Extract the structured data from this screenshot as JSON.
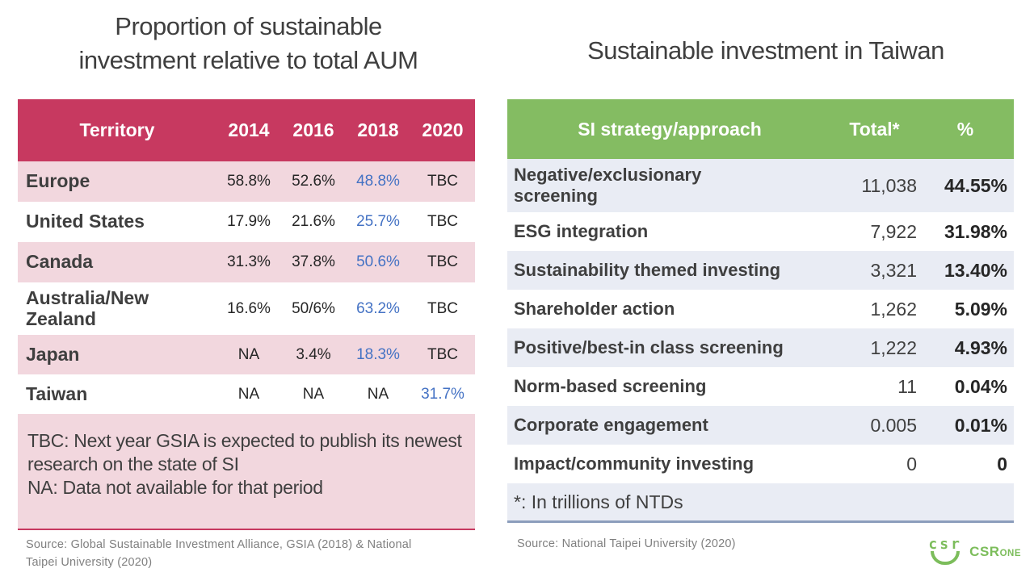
{
  "chart_data": [
    {
      "type": "table",
      "title": "Proportion of sustainable investment relative to total AUM",
      "title_lines": [
        "Proportion of sustainable",
        "investment relative to total AUM"
      ],
      "columns": [
        "Territory",
        "2014",
        "2016",
        "2018",
        "2020"
      ],
      "rows": [
        [
          "Europe",
          "58.8%",
          "52.6%",
          "48.8%",
          "TBC"
        ],
        [
          "United States",
          "17.9%",
          "21.6%",
          "25.7%",
          "TBC"
        ],
        [
          "Canada",
          "31.3%",
          "37.8%",
          "50.6%",
          "TBC"
        ],
        [
          "Australia/New Zealand",
          "16.6%",
          "50/6%",
          "63.2%",
          "TBC"
        ],
        [
          "Japan",
          "NA",
          "3.4%",
          "18.3%",
          "TBC"
        ],
        [
          "Taiwan",
          "NA",
          "NA",
          "NA",
          "31.7%"
        ]
      ],
      "notes": [
        "TBC: Next year GSIA is expected to publish its newest research on the state of SI",
        "NA: Data not available for that period"
      ],
      "source": "Source: Global Sustainable Investment Alliance, GSIA (2018) &  National Taipei University (2020)"
    },
    {
      "type": "table",
      "title": "Sustainable investment in Taiwan",
      "columns": [
        "SI strategy/approach",
        "Total*",
        "%"
      ],
      "rows": [
        [
          "Negative/exclusionary screening",
          "11,038",
          "44.55%"
        ],
        [
          "ESG integration",
          "7,922",
          "31.98%"
        ],
        [
          "Sustainability themed investing",
          "3,321",
          "13.40%"
        ],
        [
          "Shareholder action",
          "1,262",
          "5.09%"
        ],
        [
          "Positive/best-in class screening",
          "1,222",
          "4.93%"
        ],
        [
          "Norm-based screening",
          "11",
          "0.04%"
        ],
        [
          "Corporate engagement",
          "0.005",
          "0.01%"
        ],
        [
          "Impact/community investing",
          "0",
          "0"
        ]
      ],
      "footnote": "*: In trillions of NTDs",
      "source": "Source: National Taipei University (2020)"
    }
  ],
  "logo": {
    "mark": "csr",
    "text_main": "CSR",
    "text_sub": "ONE"
  },
  "colors": {
    "left_header": "#c73960",
    "left_row_pink": "#f2d7de",
    "right_header": "#84bc62",
    "right_row_gray": "#e9ecf4",
    "accent_blue": "#4472c4",
    "divider_slate": "#8c9ebc",
    "logo_green": "#7cbd5b",
    "title_gray": "#3f3f3f",
    "source_gray": "#808080"
  }
}
